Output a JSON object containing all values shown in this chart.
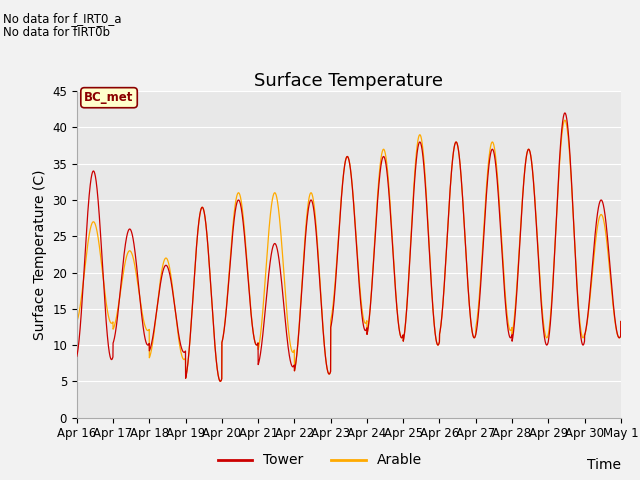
{
  "title": "Surface Temperature",
  "ylabel": "Surface Temperature (C)",
  "xlabel": "Time",
  "annotation_lines": [
    "No data for f_IRT0_a",
    "No data for f̅IRT0̅b"
  ],
  "bc_met_label": "BC_met",
  "ylim": [
    0,
    45
  ],
  "xlim": [
    0,
    360
  ],
  "xtick_labels": [
    "Apr 16",
    "Apr 17",
    "Apr 18",
    "Apr 19",
    "Apr 20",
    "Apr 21",
    "Apr 22",
    "Apr 23",
    "Apr 24",
    "Apr 25",
    "Apr 26",
    "Apr 27",
    "Apr 28",
    "Apr 29",
    "Apr 30",
    "May 1"
  ],
  "ytick_values": [
    0,
    5,
    10,
    15,
    20,
    25,
    30,
    35,
    40,
    45
  ],
  "tower_color": "#cc0000",
  "arable_color": "#ffaa00",
  "fig_bg_color": "#f2f2f2",
  "plot_bg_color": "#e8e8e8",
  "legend_tower": "Tower",
  "legend_arable": "Arable",
  "title_fontsize": 13,
  "axis_fontsize": 10,
  "tick_fontsize": 8.5,
  "tower_params": [
    [
      8,
      34
    ],
    [
      10,
      26
    ],
    [
      9,
      21
    ],
    [
      5,
      29
    ],
    [
      10,
      30
    ],
    [
      7,
      24
    ],
    [
      6,
      30
    ],
    [
      12,
      36
    ],
    [
      11,
      36
    ],
    [
      10,
      38
    ],
    [
      11,
      38
    ],
    [
      11,
      37
    ],
    [
      10,
      37
    ],
    [
      10,
      42
    ],
    [
      11,
      30
    ],
    [
      13,
      28
    ]
  ],
  "arable_params": [
    [
      13,
      27
    ],
    [
      12,
      23
    ],
    [
      8,
      22
    ],
    [
      5,
      29
    ],
    [
      10,
      31
    ],
    [
      9,
      31
    ],
    [
      6,
      31
    ],
    [
      13,
      36
    ],
    [
      11,
      37
    ],
    [
      10,
      39
    ],
    [
      11,
      38
    ],
    [
      12,
      38
    ],
    [
      11,
      37
    ],
    [
      11,
      41
    ],
    [
      11,
      28
    ],
    [
      13,
      27
    ]
  ]
}
